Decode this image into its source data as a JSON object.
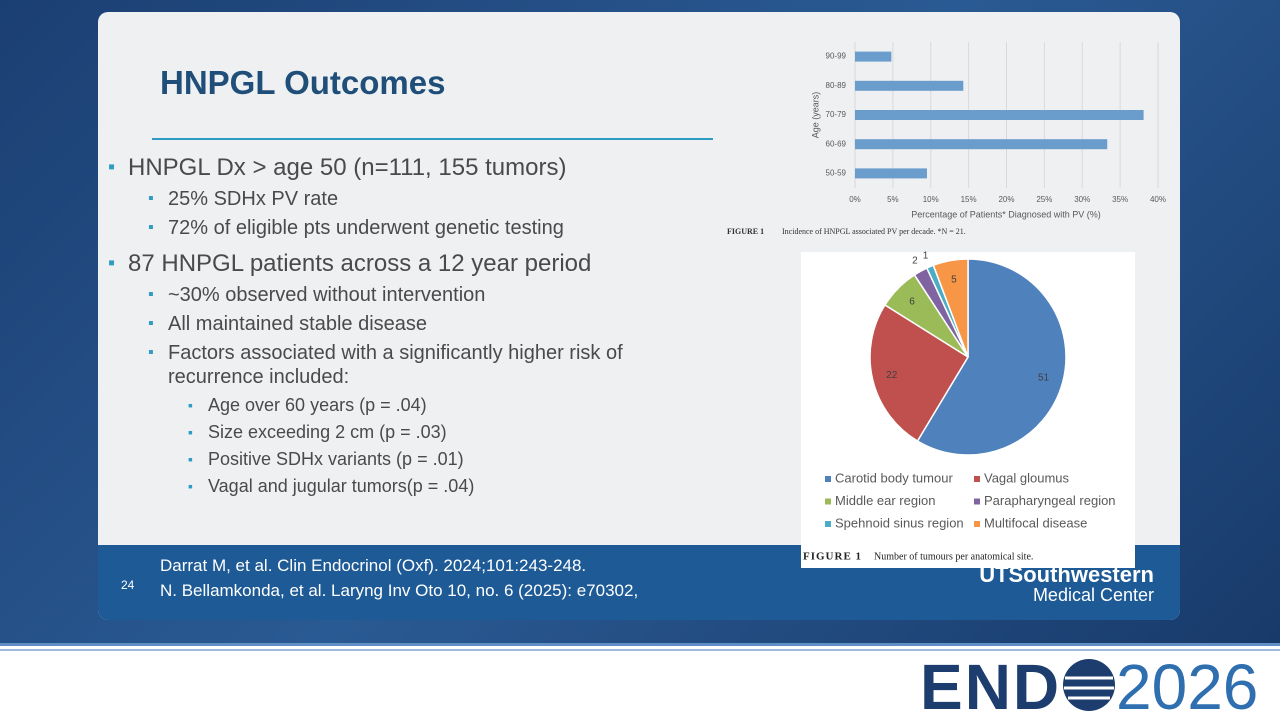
{
  "slide": {
    "title": "HNPGL Outcomes",
    "bullets": [
      {
        "level": 1,
        "text": "HNPGL Dx > age 50 (n=111, 155 tumors)"
      },
      {
        "level": 2,
        "text": "25% SDHx PV rate"
      },
      {
        "level": 2,
        "text": "72% of eligible pts underwent genetic testing"
      },
      {
        "level": 1,
        "text": "87 HNPGL patients across a 12 year period"
      },
      {
        "level": 2,
        "text": "~30% observed without intervention"
      },
      {
        "level": 2,
        "text": "All maintained stable disease"
      },
      {
        "level": 2,
        "text": "Factors associated with a significantly higher risk of recurrence included:"
      },
      {
        "level": 3,
        "text": "Age over 60 years (p = .04)"
      },
      {
        "level": 3,
        "text": "Size exceeding 2 cm (p = .03)"
      },
      {
        "level": 3,
        "text": "Positive SDHx variants (p = .01)"
      },
      {
        "level": 3,
        "text": "Vagal and jugular tumors(p = .04)"
      }
    ],
    "references": [
      "Darrat M, et al. Clin Endocrinol (Oxf). 2024;101:243-248.",
      "N. Bellamkonda, et al. Laryng Inv Oto 10, no. 6 (2025): e70302,"
    ],
    "slide_number": "24",
    "logo_line1": "UTSouthwestern",
    "logo_line2": "Medical Center"
  },
  "banner": {
    "left": "END",
    "right": "2026"
  },
  "chart_data": [
    {
      "type": "hbar",
      "categories": [
        "90-99",
        "80-89",
        "70-79",
        "60-69",
        "50-59"
      ],
      "values": [
        4.8,
        14.3,
        38.1,
        33.3,
        9.5
      ],
      "color": "#6a9ccc",
      "xlim": [
        0,
        40
      ],
      "xticks": [
        {
          "value": 0,
          "label": "0%"
        },
        {
          "value": 5,
          "label": "5%"
        },
        {
          "value": 10,
          "label": "10%"
        },
        {
          "value": 15,
          "label": "15%"
        },
        {
          "value": 20,
          "label": "20%"
        },
        {
          "value": 25,
          "label": "25%"
        },
        {
          "value": 30,
          "label": "30%"
        },
        {
          "value": 35,
          "label": "35%"
        },
        {
          "value": 40,
          "label": "40%"
        }
      ],
      "grid": true,
      "x_label": "Percentage of Patients* Diagnosed with PV (%)",
      "y_label": "Age (years)",
      "caption_label": "FIGURE 1",
      "caption": "Incidence of HNPGL associated PV per decade. *N = 21."
    },
    {
      "type": "pie",
      "categories": [
        "Carotid body tumour",
        "Vagal gloumus",
        "Middle ear region",
        "Parapharyngeal region",
        "Spehnoid sinus region",
        "Multifocal disease"
      ],
      "values": [
        51,
        22,
        6,
        2,
        1,
        5
      ],
      "colors": [
        "#4f81bd",
        "#c0504d",
        "#9bbb59",
        "#8064a2",
        "#4bacc6",
        "#f79646"
      ],
      "caption_label": "FIGURE 1",
      "caption": "Number of tumours per anatomical site."
    }
  ]
}
